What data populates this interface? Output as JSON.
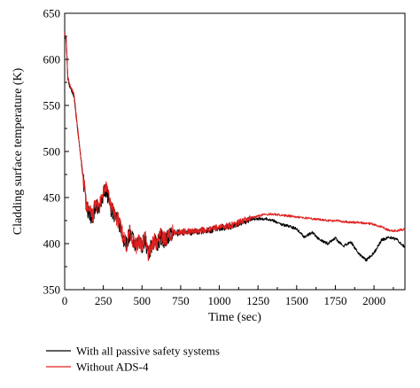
{
  "chart_data": {
    "type": "line",
    "title": "",
    "xlabel": "Time (sec)",
    "ylabel": "Cladding surface temperature (K)",
    "xlim": [
      0,
      2200
    ],
    "ylim": [
      350,
      650
    ],
    "x_ticks": [
      0,
      250,
      500,
      750,
      1000,
      1250,
      1500,
      1750,
      2000
    ],
    "x_tick_labels": [
      "0",
      "250",
      "500",
      "750",
      "1000",
      "1250",
      "1500",
      "1750",
      "2000"
    ],
    "y_ticks": [
      350,
      400,
      450,
      500,
      550,
      600,
      650
    ],
    "y_tick_labels": [
      "350",
      "400",
      "450",
      "500",
      "550",
      "600",
      "650"
    ],
    "grid": false,
    "legend_position": "bottom-left-outside",
    "series": [
      {
        "name": "With all passive safety systems",
        "color": "#000000",
        "x": [
          0,
          10,
          20,
          30,
          40,
          60,
          80,
          100,
          120,
          140,
          160,
          180,
          200,
          220,
          240,
          260,
          280,
          300,
          320,
          340,
          360,
          380,
          400,
          420,
          440,
          460,
          480,
          500,
          520,
          540,
          560,
          580,
          600,
          620,
          640,
          660,
          680,
          700,
          750,
          800,
          850,
          900,
          950,
          1000,
          1050,
          1100,
          1150,
          1200,
          1250,
          1300,
          1350,
          1400,
          1450,
          1500,
          1550,
          1600,
          1650,
          1700,
          1750,
          1800,
          1850,
          1900,
          1950,
          2000,
          2050,
          2100,
          2150,
          2200
        ],
        "y": [
          627,
          620,
          580,
          572,
          568,
          560,
          530,
          500,
          470,
          440,
          432,
          428,
          442,
          436,
          445,
          460,
          452,
          438,
          432,
          425,
          418,
          405,
          398,
          412,
          404,
          396,
          400,
          398,
          406,
          388,
          397,
          402,
          400,
          408,
          404,
          406,
          409,
          411,
          412,
          412,
          413,
          414,
          415,
          417,
          418,
          420,
          424,
          426,
          427,
          427,
          425,
          421,
          419,
          416,
          407,
          412,
          404,
          400,
          406,
          397,
          402,
          389,
          382,
          390,
          404,
          407,
          404,
          396
        ]
      },
      {
        "name": "Without ADS-4",
        "color": "#e02020",
        "x": [
          0,
          10,
          20,
          30,
          40,
          60,
          80,
          100,
          120,
          140,
          160,
          180,
          200,
          220,
          240,
          260,
          280,
          300,
          320,
          340,
          360,
          380,
          400,
          420,
          440,
          460,
          480,
          500,
          520,
          540,
          560,
          580,
          600,
          620,
          640,
          660,
          680,
          700,
          750,
          800,
          850,
          900,
          950,
          1000,
          1050,
          1100,
          1150,
          1200,
          1250,
          1300,
          1350,
          1400,
          1450,
          1500,
          1550,
          1600,
          1650,
          1700,
          1750,
          1800,
          1850,
          1900,
          1950,
          2000,
          2050,
          2100,
          2150,
          2200
        ],
        "y": [
          628,
          622,
          582,
          574,
          570,
          562,
          532,
          500,
          472,
          442,
          434,
          430,
          444,
          438,
          447,
          462,
          454,
          440,
          434,
          427,
          420,
          407,
          399,
          414,
          405,
          397,
          401,
          399,
          407,
          389,
          398,
          403,
          401,
          409,
          405,
          407,
          410,
          412,
          413,
          413,
          414,
          415,
          416,
          418,
          419,
          421,
          425,
          428,
          430,
          432,
          432,
          431,
          430,
          429,
          428,
          427,
          426,
          425,
          425,
          424,
          423,
          423,
          422,
          421,
          418,
          414,
          414,
          416
        ]
      }
    ]
  }
}
